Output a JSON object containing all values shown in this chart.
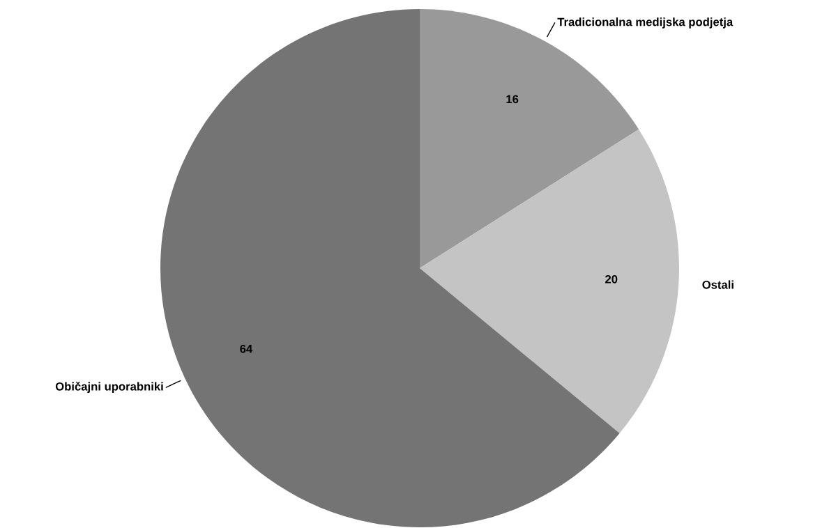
{
  "chart_data": {
    "type": "pie",
    "categories": [
      "Tradicionalna medijska podjetja",
      "Ostali",
      "Običajni uporabniki"
    ],
    "values": [
      16,
      20,
      64
    ],
    "colors": [
      "#999999",
      "#c4c4c4",
      "#747474"
    ],
    "data_labels": true,
    "legend": false
  }
}
